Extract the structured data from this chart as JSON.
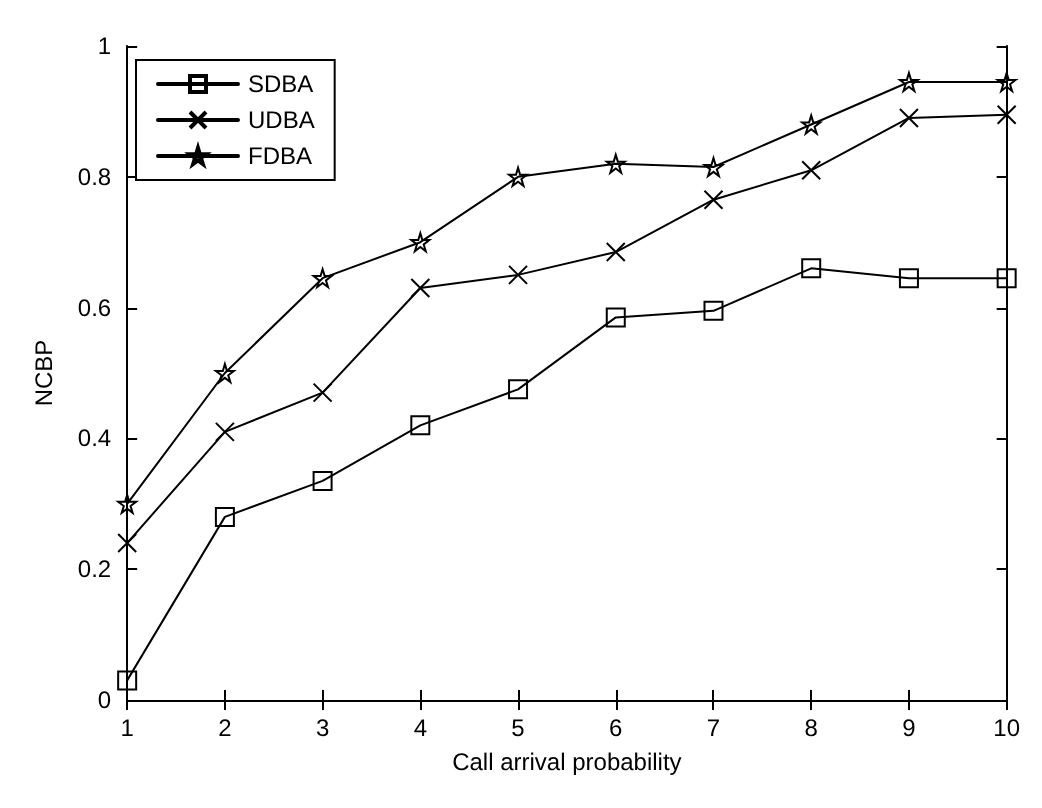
{
  "chart_data": {
    "type": "line",
    "xlabel": "Call arrival probability",
    "ylabel": "NCBP",
    "x": [
      1,
      2,
      3,
      4,
      5,
      6,
      7,
      8,
      9,
      10
    ],
    "xlim": [
      1,
      10
    ],
    "xticks": [
      1,
      2,
      3,
      4,
      5,
      6,
      7,
      8,
      9,
      10
    ],
    "ylim": [
      0,
      1
    ],
    "yticks": [
      0,
      0.2,
      0.4,
      0.6,
      0.8,
      1
    ],
    "grid": false,
    "legend": "top left",
    "line_style": "solid",
    "series": [
      {
        "name": "SDBA",
        "color": "#000000",
        "marker": "square",
        "values": [
          0.03,
          0.28,
          0.335,
          0.42,
          0.475,
          0.585,
          0.595,
          0.66,
          0.645,
          0.645
        ]
      },
      {
        "name": "UDBA",
        "color": "#000000",
        "marker": "cross",
        "values": [
          0.24,
          0.41,
          0.47,
          0.63,
          0.65,
          0.685,
          0.765,
          0.81,
          0.89,
          0.895
        ]
      },
      {
        "name": "FDBA",
        "color": "#000000",
        "marker": "star",
        "values": [
          0.3,
          0.5,
          0.645,
          0.7,
          0.8,
          0.82,
          0.815,
          0.88,
          0.945,
          0.945
        ]
      }
    ]
  }
}
